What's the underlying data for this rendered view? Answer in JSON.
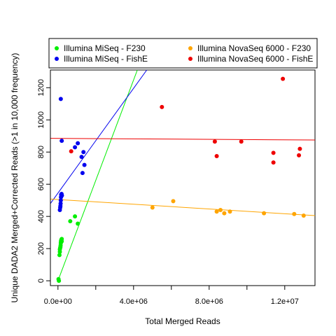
{
  "chart_data": {
    "type": "scatter",
    "xlabel": "Total Merged Reads",
    "ylabel": "Unique DADA2 Merged+Corrected Reads (>1 in 10,000 frequency)",
    "xlim": [
      -400000,
      13600000
    ],
    "ylim": [
      -30,
      1310
    ],
    "x_ticks": [
      0,
      2000000,
      4000000,
      6000000,
      8000000,
      10000000,
      12000000
    ],
    "x_tick_labels": [
      {
        "value": 0,
        "label": "0.0e+00"
      },
      {
        "value": 4000000,
        "label": "4.0e+06"
      },
      {
        "value": 8000000,
        "label": "8.0e+06"
      },
      {
        "value": 12000000,
        "label": "1.2e+07"
      }
    ],
    "y_ticks": [
      0,
      200,
      400,
      600,
      800,
      1000,
      1200
    ],
    "y_tick_labels": [
      "0",
      "200",
      "400",
      "600",
      "800",
      "1000",
      "1200"
    ],
    "grid": false,
    "legend_position": "top",
    "series": [
      {
        "name": "Illumina MiSeq - F230",
        "color": "#00ee00",
        "points": [
          [
            30000,
            10
          ],
          [
            50000,
            0
          ],
          [
            80000,
            160
          ],
          [
            100000,
            180
          ],
          [
            100000,
            195
          ],
          [
            120000,
            205
          ],
          [
            130000,
            210
          ],
          [
            140000,
            220
          ],
          [
            150000,
            235
          ],
          [
            160000,
            245
          ],
          [
            170000,
            250
          ],
          [
            180000,
            255
          ],
          [
            200000,
            260
          ],
          [
            200000,
            245
          ],
          [
            650000,
            370
          ],
          [
            900000,
            400
          ],
          [
            1050000,
            355
          ]
        ],
        "trend": [
          [
            0,
            0
          ],
          [
            4200000,
            1310
          ]
        ]
      },
      {
        "name": "Illumina MiSeq - FishE",
        "color": "#0000ee",
        "points": [
          [
            100000,
            440
          ],
          [
            120000,
            455
          ],
          [
            130000,
            465
          ],
          [
            140000,
            480
          ],
          [
            150000,
            500
          ],
          [
            160000,
            520
          ],
          [
            170000,
            535
          ],
          [
            190000,
            540
          ],
          [
            210000,
            530
          ],
          [
            150000,
            1130
          ],
          [
            200000,
            870
          ],
          [
            900000,
            830
          ],
          [
            1050000,
            855
          ],
          [
            1250000,
            770
          ],
          [
            1300000,
            670
          ],
          [
            1350000,
            800
          ],
          [
            1400000,
            720
          ]
        ],
        "trend": [
          [
            -400000,
            480
          ],
          [
            4700000,
            1310
          ]
        ]
      },
      {
        "name": "Illumina NovaSeq 6000 - F230",
        "color": "#ffa500",
        "points": [
          [
            5000000,
            455
          ],
          [
            6100000,
            495
          ],
          [
            8400000,
            430
          ],
          [
            8600000,
            440
          ],
          [
            8800000,
            420
          ],
          [
            9100000,
            430
          ],
          [
            10900000,
            420
          ],
          [
            12500000,
            415
          ],
          [
            13000000,
            405
          ]
        ],
        "trend": [
          [
            -400000,
            508
          ],
          [
            13600000,
            405
          ]
        ]
      },
      {
        "name": "Illumina NovaSeq 6000 - FishE",
        "color": "#ee0000",
        "points": [
          [
            700000,
            805
          ],
          [
            5500000,
            1080
          ],
          [
            8300000,
            865
          ],
          [
            8400000,
            775
          ],
          [
            9700000,
            865
          ],
          [
            11400000,
            735
          ],
          [
            11400000,
            795
          ],
          [
            11900000,
            1255
          ],
          [
            12750000,
            780
          ],
          [
            12800000,
            820
          ]
        ],
        "trend": [
          [
            -400000,
            885
          ],
          [
            13600000,
            875
          ]
        ]
      }
    ]
  }
}
